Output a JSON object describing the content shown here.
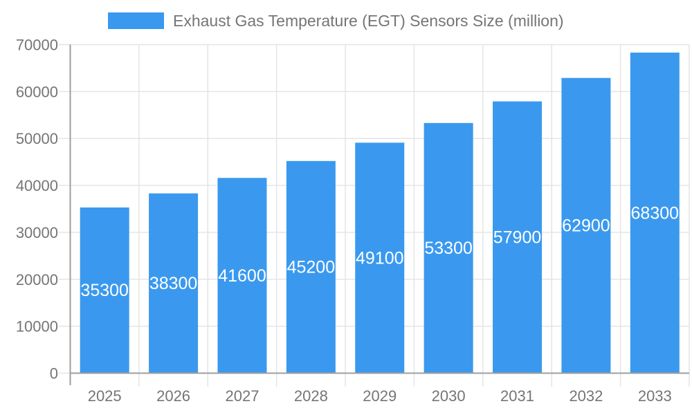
{
  "legend": {
    "label": "Exhaust Gas Temperature (EGT) Sensors Size (million)"
  },
  "chart_data": {
    "type": "bar",
    "title": "Exhaust Gas Temperature (EGT) Sensors Size (million)",
    "categories": [
      "2025",
      "2026",
      "2027",
      "2028",
      "2029",
      "2030",
      "2031",
      "2032",
      "2033"
    ],
    "values": [
      35300,
      38300,
      41600,
      45200,
      49100,
      53300,
      57900,
      62900,
      68300
    ],
    "value_labels": [
      "35300",
      "38300",
      "41600",
      "45200",
      "49100",
      "53300",
      "57900",
      "62900",
      "68300"
    ],
    "xlabel": "",
    "ylabel": "",
    "ylim": [
      0,
      70000
    ],
    "ytick_interval": 10000,
    "yticks": [
      0,
      10000,
      20000,
      30000,
      40000,
      50000,
      60000,
      70000
    ],
    "ytick_labels": [
      "0",
      "10000",
      "20000",
      "30000",
      "40000",
      "50000",
      "60000",
      "70000"
    ],
    "grid": true,
    "legend_position": "top",
    "colors": {
      "bar": "#3A99EE",
      "value_label": "#ffffff",
      "axis_text": "#757575",
      "legend_text": "#757575",
      "gridline": "#e4e4e4",
      "axis_line": "#9e9e9e"
    }
  }
}
